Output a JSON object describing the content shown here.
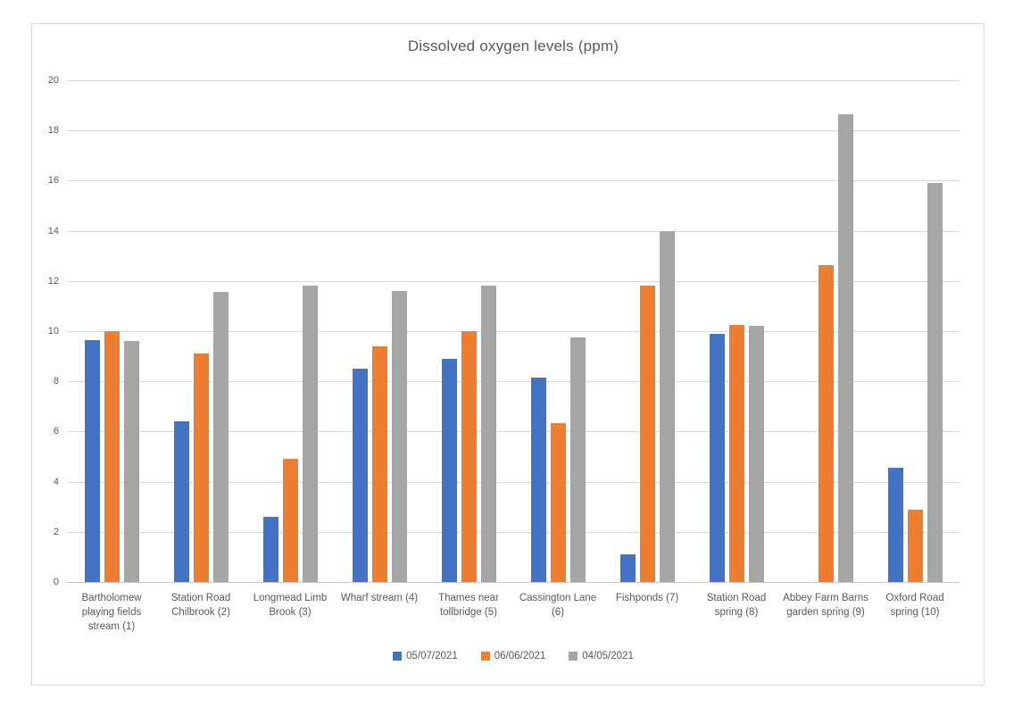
{
  "chart_data": {
    "type": "bar",
    "title": "Dissolved oxygen levels (ppm)",
    "categories": [
      "Bartholomew playing fields stream (1)",
      "Station Road Chilbrook (2)",
      "Longmead Limb Brook (3)",
      "Wharf stream (4)",
      "Thames near tollbridge (5)",
      "Cassington Lane (6)",
      "Fishponds (7)",
      "Station Road spring (8)",
      "Abbey Farm Barns garden spring (9)",
      "Oxford Road spring (10)"
    ],
    "series": [
      {
        "name": "05/07/2021",
        "color": "#4472c4",
        "values": [
          9.65,
          6.4,
          2.6,
          8.5,
          8.9,
          8.15,
          1.1,
          9.9,
          null,
          4.55
        ]
      },
      {
        "name": "06/06/2021",
        "color": "#ed7d31",
        "values": [
          10.0,
          9.1,
          4.9,
          9.4,
          10.0,
          6.35,
          11.8,
          10.25,
          12.65,
          2.9
        ]
      },
      {
        "name": "04/05/2021",
        "color": "#a5a5a5",
        "values": [
          9.6,
          11.55,
          11.8,
          11.6,
          11.8,
          9.75,
          14.0,
          10.2,
          18.65,
          15.9
        ]
      }
    ],
    "xlabel": "",
    "ylabel": "",
    "ylim": [
      0,
      20
    ],
    "ytick_step": 2,
    "yticks": [
      0,
      2,
      4,
      6,
      8,
      10,
      12,
      14,
      16,
      18,
      20
    ],
    "grid": true,
    "legend_position": "bottom",
    "colors": {
      "text": "#595959",
      "gridline": "#d9d9d9",
      "axis_line": "#c9c9c9",
      "frame_border": "#d9d9d9",
      "background": "#ffffff"
    }
  }
}
